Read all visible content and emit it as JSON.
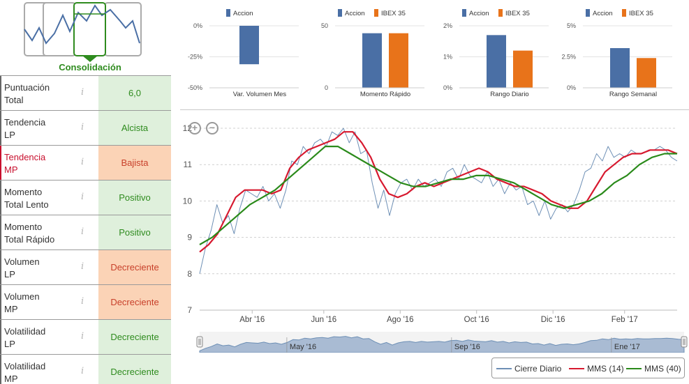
{
  "logo": {
    "title": "Consolidación"
  },
  "indicators": [
    {
      "label_1": "Puntuación",
      "label_2": "Total",
      "value": "6,0",
      "status": "pos",
      "highlight": false
    },
    {
      "label_1": "Tendencia",
      "label_2": "LP",
      "value": "Alcista",
      "status": "pos",
      "highlight": false
    },
    {
      "label_1": "Tendencia",
      "label_2": "MP",
      "value": "Bajista",
      "status": "neg",
      "highlight": true
    },
    {
      "label_1": "Momento",
      "label_2": "Total Lento",
      "value": "Positivo",
      "status": "pos",
      "highlight": false
    },
    {
      "label_1": "Momento",
      "label_2": "Total Rápido",
      "value": "Positivo",
      "status": "pos",
      "highlight": false
    },
    {
      "label_1": "Volumen",
      "label_2": "LP",
      "value": "Decreciente",
      "status": "neg",
      "highlight": false
    },
    {
      "label_1": "Volumen",
      "label_2": "MP",
      "value": "Decreciente",
      "status": "neg",
      "highlight": false
    },
    {
      "label_1": "Volatilidad",
      "label_2": "LP",
      "value": "Decreciente",
      "status": "pos",
      "highlight": false
    },
    {
      "label_1": "Volatilidad",
      "label_2": "MP",
      "value": "Decreciente",
      "status": "pos",
      "highlight": false
    }
  ],
  "info_glyph": "i",
  "colors": {
    "accion": "#4a6fa5",
    "ibex": "#e8731a",
    "cierre": "#6d8fb5",
    "mms14": "#d7192f",
    "mms40": "#2a8a1a"
  },
  "chart_data": [
    {
      "type": "bar",
      "title": "Var. Volumen Mes",
      "legend": [
        "Accion"
      ],
      "series": [
        {
          "name": "Accion",
          "values": [
            -31
          ]
        }
      ],
      "ylim": [
        -50,
        0
      ],
      "ticks": [
        "0%",
        "-25%",
        "-50%"
      ],
      "tick_values": [
        0,
        -25,
        -50
      ]
    },
    {
      "type": "bar",
      "title": "Momento Rápido",
      "legend": [
        "Accion",
        "IBEX 35"
      ],
      "series": [
        {
          "name": "Accion",
          "values": [
            44
          ]
        },
        {
          "name": "IBEX 35",
          "values": [
            44
          ]
        }
      ],
      "ylim": [
        0,
        50
      ],
      "ticks": [
        "50",
        "0"
      ],
      "tick_values": [
        50,
        0
      ]
    },
    {
      "type": "bar",
      "title": "Rango Diario",
      "legend": [
        "Accion",
        "IBEX 35"
      ],
      "series": [
        {
          "name": "Accion",
          "values": [
            1.7
          ]
        },
        {
          "name": "IBEX 35",
          "values": [
            1.2
          ]
        }
      ],
      "ylim": [
        0,
        2
      ],
      "ticks": [
        "2%",
        "1%",
        "0%"
      ],
      "tick_values": [
        2,
        1,
        0
      ]
    },
    {
      "type": "bar",
      "title": "Rango Semanal",
      "legend": [
        "Accion",
        "IBEX 35"
      ],
      "series": [
        {
          "name": "Accion",
          "values": [
            3.2
          ]
        },
        {
          "name": "IBEX 35",
          "values": [
            2.4
          ]
        }
      ],
      "ylim": [
        0,
        5
      ],
      "ticks": [
        "5%",
        "2.5%",
        "0%"
      ],
      "tick_values": [
        5,
        2.5,
        0
      ]
    },
    {
      "type": "line",
      "title": "",
      "x_ticks": [
        "Abr '16",
        "Jun '16",
        "Ago '16",
        "Oct '16",
        "Dic '16",
        "Feb '17"
      ],
      "x_tick_pos": [
        0.11,
        0.26,
        0.42,
        0.58,
        0.74,
        0.89
      ],
      "y_ticks": [
        "12",
        "11",
        "10",
        "9",
        "8",
        "7"
      ],
      "ylim": [
        7,
        12
      ],
      "navigator_ticks": [
        "May '16",
        "Sep '16",
        "Ene '17"
      ],
      "navigator_tick_pos": [
        0.18,
        0.52,
        0.85
      ],
      "series": [
        {
          "name": "Cierre Diario",
          "values": [
            8.0,
            8.7,
            9.2,
            9.9,
            9.4,
            9.6,
            9.1,
            9.8,
            10.3,
            10.2,
            10.1,
            10.4,
            10.0,
            10.2,
            9.8,
            10.3,
            11.1,
            11.0,
            11.5,
            11.3,
            11.6,
            11.7,
            11.5,
            11.9,
            11.8,
            12.0,
            11.6,
            11.9,
            11.3,
            11.4,
            10.5,
            9.8,
            10.3,
            9.6,
            10.2,
            10.5,
            10.6,
            10.3,
            10.6,
            10.4,
            10.5,
            10.6,
            10.4,
            10.8,
            10.9,
            10.6,
            11.0,
            10.7,
            10.6,
            10.5,
            10.8,
            10.4,
            10.6,
            10.2,
            10.5,
            10.3,
            10.4,
            9.9,
            10.0,
            9.6,
            10.0,
            9.5,
            9.8,
            9.9,
            9.7,
            9.9,
            10.3,
            10.8,
            10.9,
            11.3,
            11.1,
            11.5,
            11.2,
            11.3,
            11.2,
            11.4,
            11.3,
            11.3,
            11.4,
            11.4,
            11.5,
            11.4,
            11.2,
            11.1
          ]
        },
        {
          "name": "MMS (14)",
          "values": [
            8.6,
            8.8,
            9.1,
            9.6,
            10.1,
            10.3,
            10.3,
            10.3,
            10.2,
            10.3,
            10.9,
            11.2,
            11.4,
            11.5,
            11.6,
            11.7,
            11.9,
            11.9,
            11.6,
            11.2,
            10.6,
            10.2,
            10.1,
            10.2,
            10.4,
            10.5,
            10.4,
            10.5,
            10.6,
            10.7,
            10.8,
            10.9,
            10.8,
            10.6,
            10.5,
            10.4,
            10.4,
            10.3,
            10.2,
            10.0,
            9.9,
            9.8,
            9.8,
            10.0,
            10.4,
            10.8,
            11.0,
            11.2,
            11.3,
            11.3,
            11.4,
            11.4,
            11.4,
            11.3
          ]
        },
        {
          "name": "MMS (40)",
          "values": [
            8.8,
            9.0,
            9.3,
            9.6,
            9.9,
            10.1,
            10.3,
            10.6,
            10.9,
            11.2,
            11.5,
            11.5,
            11.3,
            11.1,
            10.9,
            10.7,
            10.5,
            10.4,
            10.4,
            10.5,
            10.6,
            10.6,
            10.7,
            10.7,
            10.6,
            10.5,
            10.3,
            10.1,
            9.9,
            9.8,
            9.9,
            10.0,
            10.2,
            10.5,
            10.7,
            11.0,
            11.2,
            11.3,
            11.3
          ]
        }
      ]
    }
  ],
  "legend_main": [
    "Cierre Diario",
    "MMS (14)",
    "MMS (40)"
  ],
  "zoom": {
    "in": "+",
    "out": "−"
  }
}
